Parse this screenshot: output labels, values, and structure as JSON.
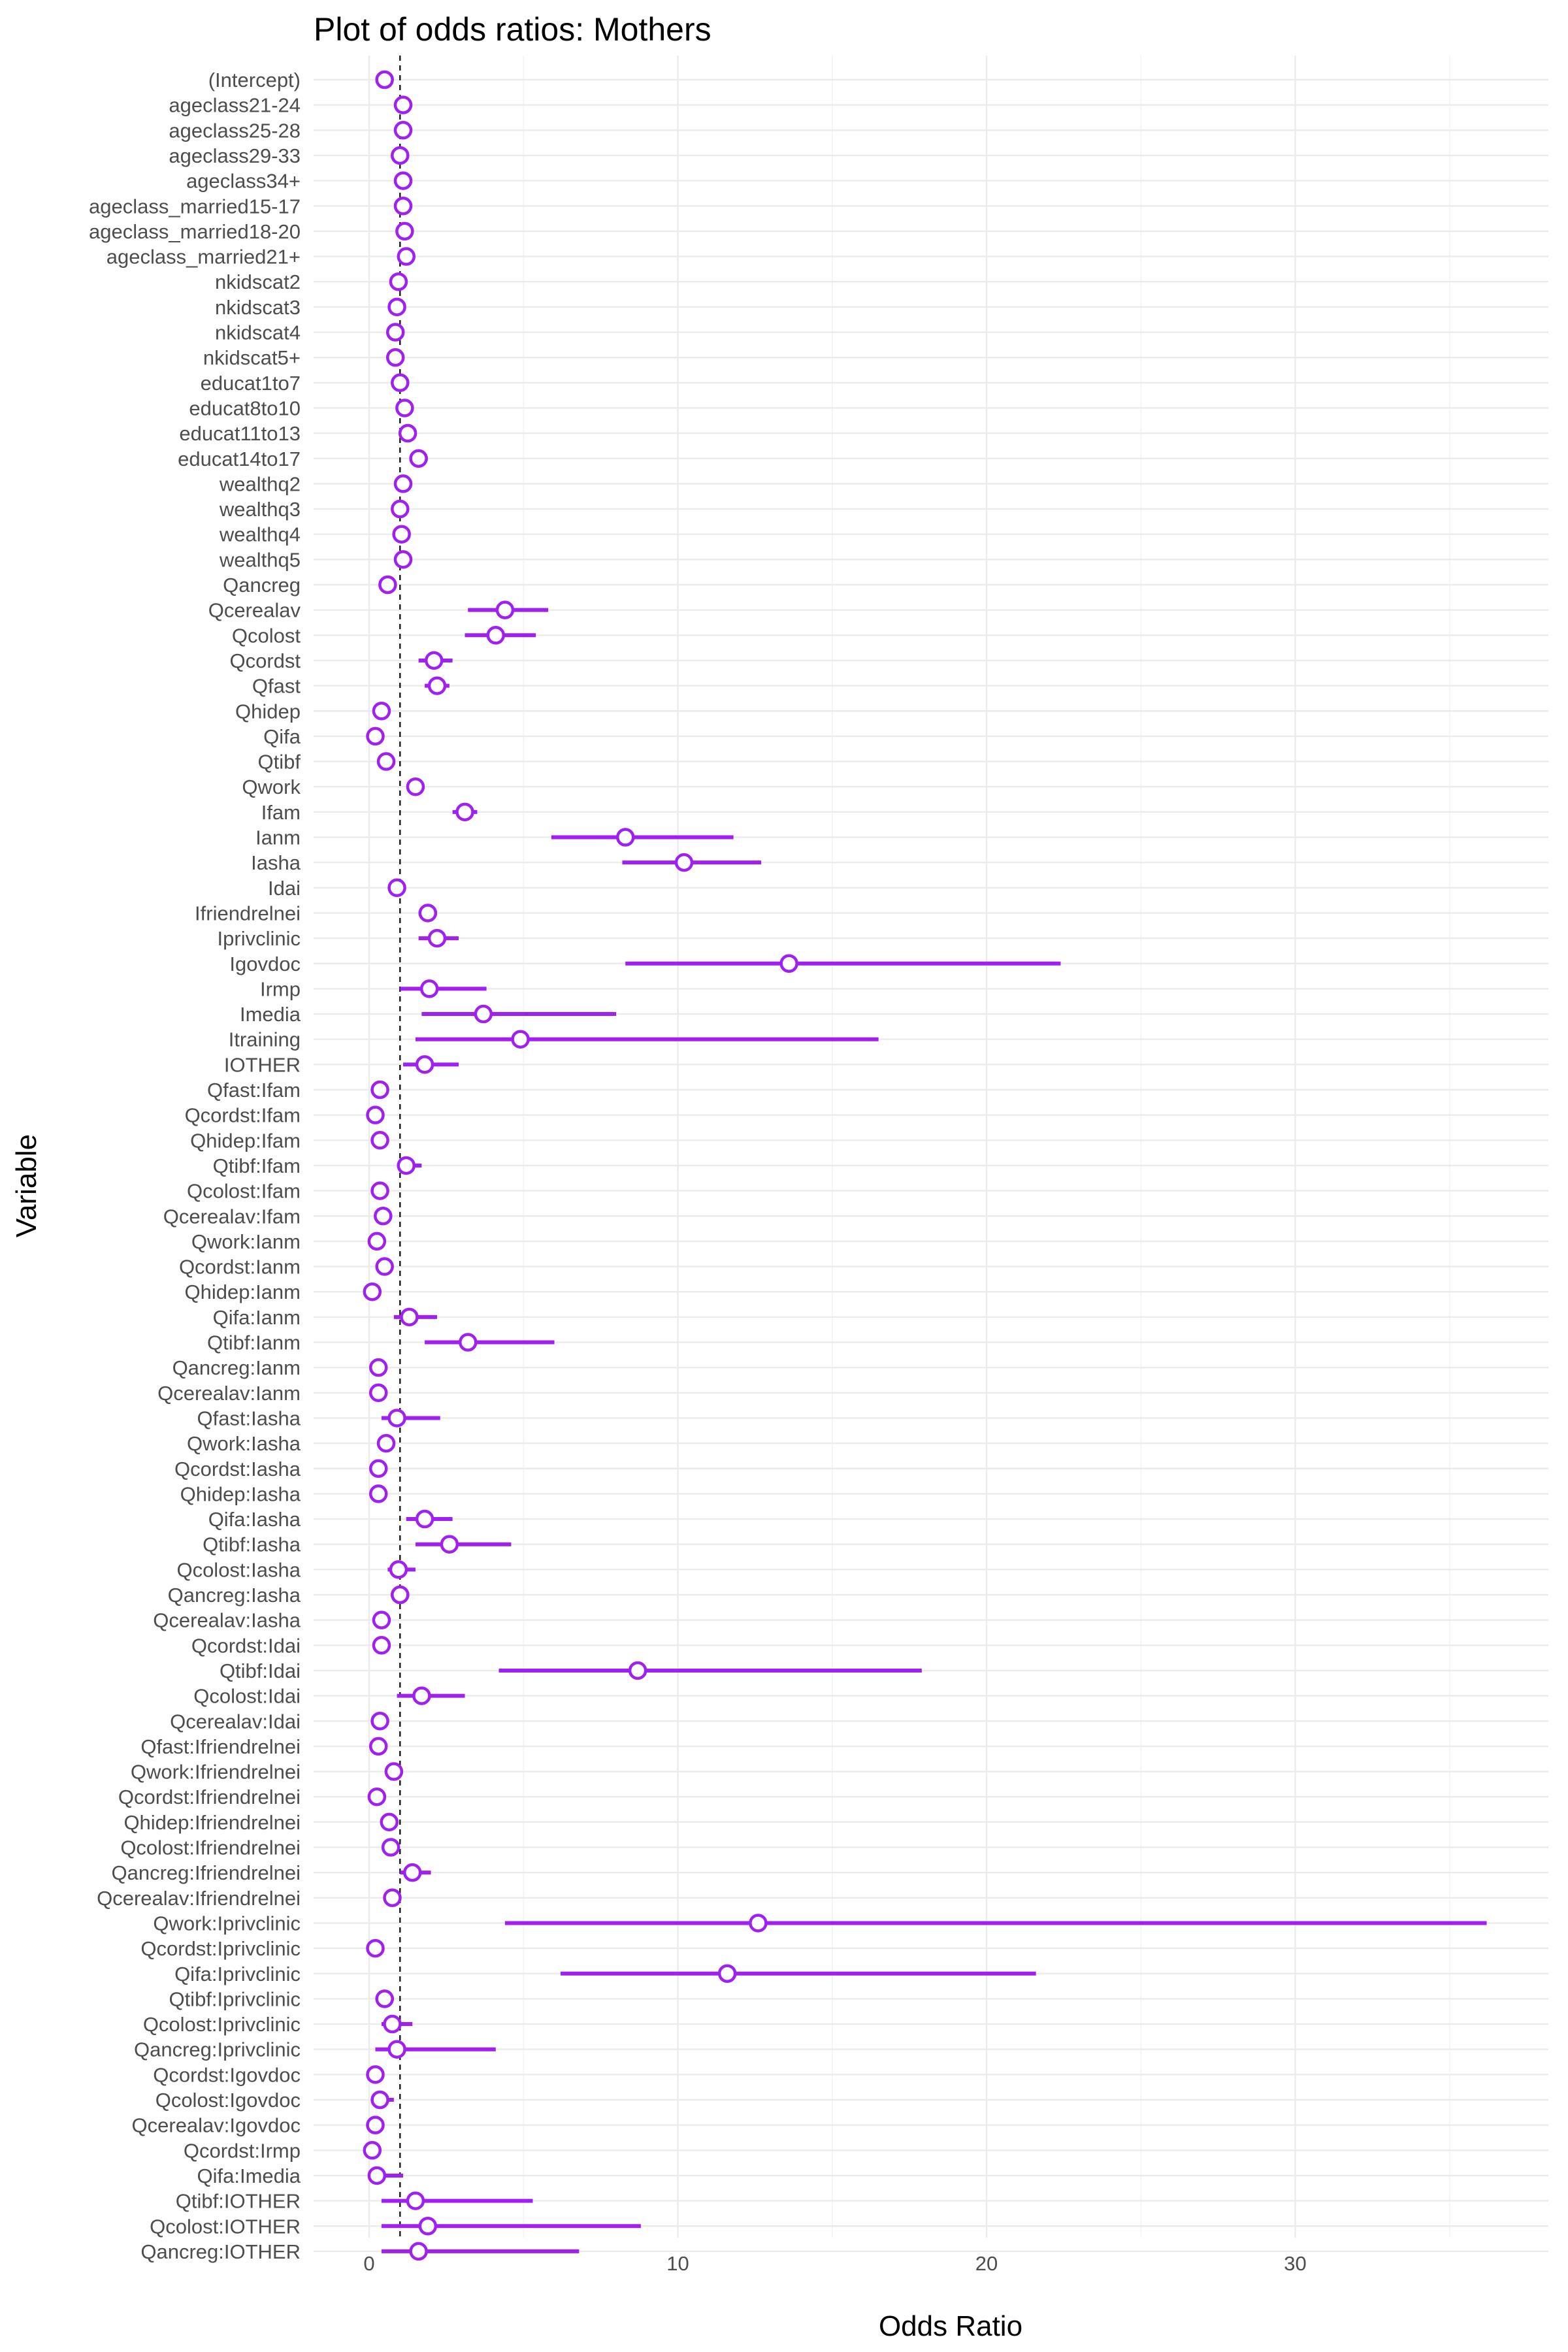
{
  "chart_data": {
    "type": "scatter",
    "subtype": "forest-plot",
    "title": "Plot of odds ratios: Mothers",
    "xlabel": "Odds Ratio",
    "ylabel": "Variable",
    "xlim": [
      -1.8,
      38.2
    ],
    "x_ticks": [
      0,
      10,
      20,
      30
    ],
    "reference_line": 1,
    "grid": true,
    "color": "#a020f0",
    "series": [
      {
        "label": "(Intercept)",
        "or": 0.5,
        "low": 0.45,
        "high": 0.55
      },
      {
        "label": "ageclass21-24",
        "or": 1.1,
        "low": 1.0,
        "high": 1.2
      },
      {
        "label": "ageclass25-28",
        "or": 1.1,
        "low": 1.0,
        "high": 1.2
      },
      {
        "label": "ageclass29-33",
        "or": 1.0,
        "low": 0.9,
        "high": 1.1
      },
      {
        "label": "ageclass34+",
        "or": 1.1,
        "low": 1.0,
        "high": 1.2
      },
      {
        "label": "ageclass_married15-17",
        "or": 1.1,
        "low": 1.0,
        "high": 1.2
      },
      {
        "label": "ageclass_married18-20",
        "or": 1.15,
        "low": 1.05,
        "high": 1.25
      },
      {
        "label": "ageclass_married21+",
        "or": 1.2,
        "low": 1.05,
        "high": 1.35
      },
      {
        "label": "nkidscat2",
        "or": 0.95,
        "low": 0.85,
        "high": 1.05
      },
      {
        "label": "nkidscat3",
        "or": 0.9,
        "low": 0.8,
        "high": 1.0
      },
      {
        "label": "nkidscat4",
        "or": 0.85,
        "low": 0.75,
        "high": 0.95
      },
      {
        "label": "nkidscat5+",
        "or": 0.85,
        "low": 0.7,
        "high": 1.0
      },
      {
        "label": "educat1to7",
        "or": 1.0,
        "low": 0.9,
        "high": 1.1
      },
      {
        "label": "educat8to10",
        "or": 1.15,
        "low": 1.0,
        "high": 1.3
      },
      {
        "label": "educat11to13",
        "or": 1.25,
        "low": 1.1,
        "high": 1.4
      },
      {
        "label": "educat14to17",
        "or": 1.6,
        "low": 1.3,
        "high": 1.9
      },
      {
        "label": "wealthq2",
        "or": 1.1,
        "low": 1.0,
        "high": 1.2
      },
      {
        "label": "wealthq3",
        "or": 1.0,
        "low": 0.9,
        "high": 1.1
      },
      {
        "label": "wealthq4",
        "or": 1.05,
        "low": 0.95,
        "high": 1.15
      },
      {
        "label": "wealthq5",
        "or": 1.1,
        "low": 0.95,
        "high": 1.25
      },
      {
        "label": "Qancreg",
        "or": 0.6,
        "low": 0.5,
        "high": 0.7
      },
      {
        "label": "Qcerealav",
        "or": 4.4,
        "low": 3.2,
        "high": 5.8
      },
      {
        "label": "Qcolost",
        "or": 4.1,
        "low": 3.1,
        "high": 5.4
      },
      {
        "label": "Qcordst",
        "or": 2.1,
        "low": 1.6,
        "high": 2.7
      },
      {
        "label": "Qfast",
        "or": 2.2,
        "low": 1.8,
        "high": 2.6
      },
      {
        "label": "Qhidep",
        "or": 0.4,
        "low": 0.3,
        "high": 0.5
      },
      {
        "label": "Qifa",
        "or": 0.2,
        "low": 0.15,
        "high": 0.25
      },
      {
        "label": "Qtibf",
        "or": 0.55,
        "low": 0.45,
        "high": 0.65
      },
      {
        "label": "Qwork",
        "or": 1.5,
        "low": 1.3,
        "high": 1.7
      },
      {
        "label": "Ifam",
        "or": 3.1,
        "low": 2.7,
        "high": 3.5
      },
      {
        "label": "Ianm",
        "or": 8.3,
        "low": 5.9,
        "high": 11.8
      },
      {
        "label": "Iasha",
        "or": 10.2,
        "low": 8.2,
        "high": 12.7
      },
      {
        "label": "Idai",
        "or": 0.9,
        "low": 0.8,
        "high": 1.0
      },
      {
        "label": "Ifriendrelnei",
        "or": 1.9,
        "low": 1.6,
        "high": 2.2
      },
      {
        "label": "Iprivclinic",
        "or": 2.2,
        "low": 1.6,
        "high": 2.9
      },
      {
        "label": "Igovdoc",
        "or": 13.6,
        "low": 8.3,
        "high": 22.4
      },
      {
        "label": "Irmp",
        "or": 1.95,
        "low": 1.0,
        "high": 3.8
      },
      {
        "label": "Imedia",
        "or": 3.7,
        "low": 1.7,
        "high": 8.0
      },
      {
        "label": "Itraining",
        "or": 4.9,
        "low": 1.5,
        "high": 16.5
      },
      {
        "label": "IOTHER",
        "or": 1.8,
        "low": 1.1,
        "high": 2.9
      },
      {
        "label": "Qfast:Ifam",
        "or": 0.35,
        "low": 0.25,
        "high": 0.45
      },
      {
        "label": "Qcordst:Ifam",
        "or": 0.2,
        "low": 0.15,
        "high": 0.25
      },
      {
        "label": "Qhidep:Ifam",
        "or": 0.35,
        "low": 0.25,
        "high": 0.45
      },
      {
        "label": "Qtibf:Ifam",
        "or": 1.2,
        "low": 0.9,
        "high": 1.7
      },
      {
        "label": "Qcolost:Ifam",
        "or": 0.35,
        "low": 0.25,
        "high": 0.45
      },
      {
        "label": "Qcerealav:Ifam",
        "or": 0.45,
        "low": 0.3,
        "high": 0.6
      },
      {
        "label": "Qwork:Ianm",
        "or": 0.25,
        "low": 0.15,
        "high": 0.35
      },
      {
        "label": "Qcordst:Ianm",
        "or": 0.5,
        "low": 0.35,
        "high": 0.65
      },
      {
        "label": "Qhidep:Ianm",
        "or": 0.1,
        "low": 0.05,
        "high": 0.15
      },
      {
        "label": "Qifa:Ianm",
        "or": 1.3,
        "low": 0.8,
        "high": 2.2
      },
      {
        "label": "Qtibf:Ianm",
        "or": 3.2,
        "low": 1.8,
        "high": 6.0
      },
      {
        "label": "Qancreg:Ianm",
        "or": 0.3,
        "low": 0.2,
        "high": 0.4
      },
      {
        "label": "Qcerealav:Ianm",
        "or": 0.3,
        "low": 0.2,
        "high": 0.4
      },
      {
        "label": "Qfast:Iasha",
        "or": 0.9,
        "low": 0.4,
        "high": 2.3
      },
      {
        "label": "Qwork:Iasha",
        "or": 0.55,
        "low": 0.4,
        "high": 0.7
      },
      {
        "label": "Qcordst:Iasha",
        "or": 0.3,
        "low": 0.2,
        "high": 0.4
      },
      {
        "label": "Qhidep:Iasha",
        "or": 0.3,
        "low": 0.2,
        "high": 0.4
      },
      {
        "label": "Qifa:Iasha",
        "or": 1.8,
        "low": 1.2,
        "high": 2.7
      },
      {
        "label": "Qtibf:Iasha",
        "or": 2.6,
        "low": 1.5,
        "high": 4.6
      },
      {
        "label": "Qcolost:Iasha",
        "or": 0.95,
        "low": 0.6,
        "high": 1.5
      },
      {
        "label": "Qancreg:Iasha",
        "or": 1.0,
        "low": 0.7,
        "high": 1.3
      },
      {
        "label": "Qcerealav:Iasha",
        "or": 0.4,
        "low": 0.3,
        "high": 0.5
      },
      {
        "label": "Qcordst:Idai",
        "or": 0.4,
        "low": 0.3,
        "high": 0.5
      },
      {
        "label": "Qtibf:Idai",
        "or": 8.7,
        "low": 4.2,
        "high": 17.9
      },
      {
        "label": "Qcolost:Idai",
        "or": 1.7,
        "low": 0.9,
        "high": 3.1
      },
      {
        "label": "Qcerealav:Idai",
        "or": 0.35,
        "low": 0.25,
        "high": 0.45
      },
      {
        "label": "Qfast:Ifriendrelnei",
        "or": 0.3,
        "low": 0.2,
        "high": 0.4
      },
      {
        "label": "Qwork:Ifriendrelnei",
        "or": 0.8,
        "low": 0.65,
        "high": 0.95
      },
      {
        "label": "Qcordst:Ifriendrelnei",
        "or": 0.25,
        "low": 0.15,
        "high": 0.35
      },
      {
        "label": "Qhidep:Ifriendrelnei",
        "or": 0.65,
        "low": 0.5,
        "high": 0.8
      },
      {
        "label": "Qcolost:Ifriendrelnei",
        "or": 0.7,
        "low": 0.55,
        "high": 0.85
      },
      {
        "label": "Qancreg:Ifriendrelnei",
        "or": 1.4,
        "low": 1.0,
        "high": 2.0
      },
      {
        "label": "Qcerealav:Ifriendrelnei",
        "or": 0.75,
        "low": 0.6,
        "high": 0.9
      },
      {
        "label": "Qwork:Iprivclinic",
        "or": 12.6,
        "low": 4.4,
        "high": 36.2
      },
      {
        "label": "Qcordst:Iprivclinic",
        "or": 0.2,
        "low": 0.12,
        "high": 0.28
      },
      {
        "label": "Qifa:Iprivclinic",
        "or": 11.6,
        "low": 6.2,
        "high": 21.6
      },
      {
        "label": "Qtibf:Iprivclinic",
        "or": 0.5,
        "low": 0.3,
        "high": 0.8
      },
      {
        "label": "Qcolost:Iprivclinic",
        "or": 0.75,
        "low": 0.4,
        "high": 1.4
      },
      {
        "label": "Qancreg:Iprivclinic",
        "or": 0.9,
        "low": 0.2,
        "high": 4.1
      },
      {
        "label": "Qcordst:Igovdoc",
        "or": 0.2,
        "low": 0.1,
        "high": 0.3
      },
      {
        "label": "Qcolost:Igovdoc",
        "or": 0.35,
        "low": 0.15,
        "high": 0.8
      },
      {
        "label": "Qcerealav:Igovdoc",
        "or": 0.2,
        "low": 0.1,
        "high": 0.3
      },
      {
        "label": "Qcordst:Irmp",
        "or": 0.1,
        "low": 0.05,
        "high": 0.15
      },
      {
        "label": "Qifa:Imedia",
        "or": 0.25,
        "low": 0.1,
        "high": 1.1
      },
      {
        "label": "Qtibf:IOTHER",
        "or": 1.5,
        "low": 0.4,
        "high": 5.3
      },
      {
        "label": "Qcolost:IOTHER",
        "or": 1.9,
        "low": 0.4,
        "high": 8.8
      },
      {
        "label": "Qancreg:IOTHER",
        "or": 1.6,
        "low": 0.4,
        "high": 6.8
      }
    ]
  }
}
